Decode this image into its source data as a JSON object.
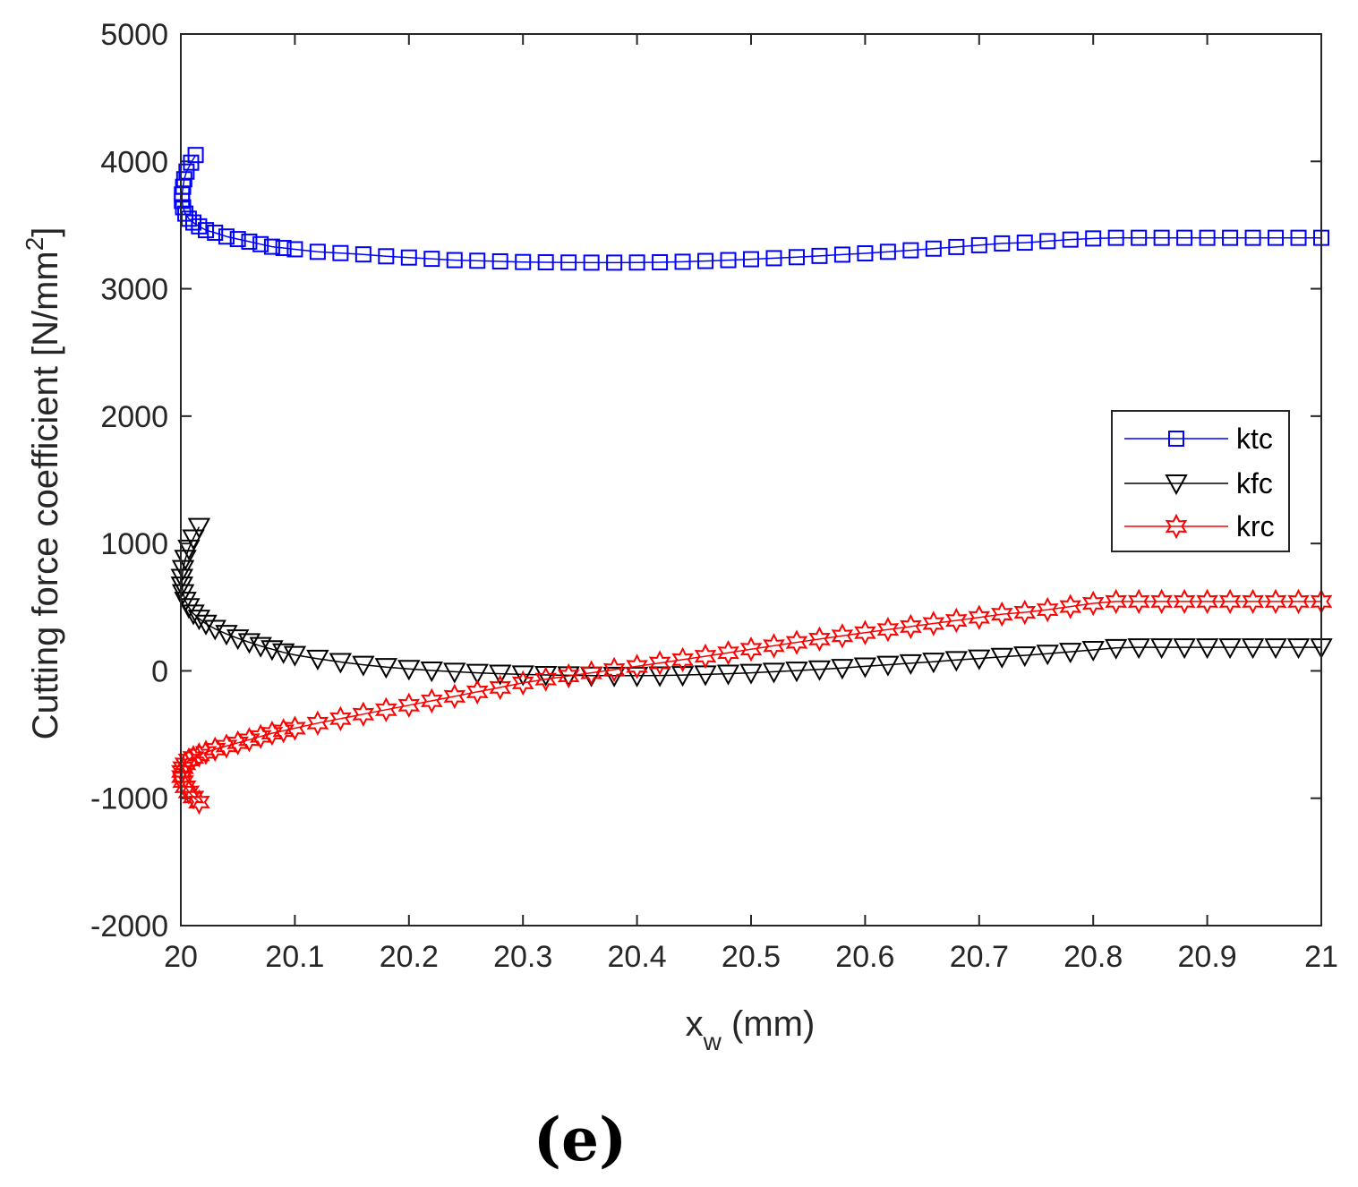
{
  "chart_data": {
    "type": "line",
    "panel_label": "(e)",
    "xlabel": {
      "main": "x",
      "sub": "w",
      "rest": " (mm)"
    },
    "ylabel": {
      "main": "Cutting force coefficient [N/mm",
      "sup": "2",
      "close": "]"
    },
    "xlim": [
      20,
      21
    ],
    "ylim": [
      -2000,
      5000
    ],
    "xticks": [
      20,
      20.1,
      20.2,
      20.3,
      20.4,
      20.5,
      20.6,
      20.7,
      20.8,
      20.9,
      21
    ],
    "xtick_labels": [
      "20",
      "20.1",
      "20.2",
      "20.3",
      "20.4",
      "20.5",
      "20.6",
      "20.7",
      "20.8",
      "20.9",
      "21"
    ],
    "yticks": [
      -2000,
      -1000,
      0,
      1000,
      2000,
      3000,
      4000,
      5000
    ],
    "ytick_labels": [
      "-2000",
      "-1000",
      "0",
      "1000",
      "2000",
      "3000",
      "4000",
      "5000"
    ],
    "legend_position": "right",
    "series": [
      {
        "name": "ktc",
        "color": "#0000ff",
        "marker": "square",
        "x": [
          20.013,
          20.009,
          20.005,
          20.003,
          20.002,
          20.001,
          20.001,
          20.002,
          20.004,
          20.007,
          20.011,
          20.016,
          20.022,
          20.03,
          20.04,
          20.05,
          20.06,
          20.07,
          20.08,
          20.09,
          20.1,
          20.12,
          20.14,
          20.16,
          20.18,
          20.2,
          20.22,
          20.24,
          20.26,
          20.28,
          20.3,
          20.32,
          20.34,
          20.36,
          20.38,
          20.4,
          20.42,
          20.44,
          20.46,
          20.48,
          20.5,
          20.52,
          20.54,
          20.56,
          20.58,
          20.6,
          20.62,
          20.64,
          20.66,
          20.68,
          20.7,
          20.72,
          20.74,
          20.76,
          20.78,
          20.8,
          20.82,
          20.84,
          20.86,
          20.88,
          20.9,
          20.92,
          20.94,
          20.96,
          20.98,
          21.0
        ],
        "values": [
          4050,
          3990,
          3920,
          3860,
          3800,
          3740,
          3690,
          3640,
          3590,
          3550,
          3520,
          3490,
          3460,
          3440,
          3410,
          3390,
          3370,
          3350,
          3330,
          3320,
          3310,
          3290,
          3280,
          3270,
          3255,
          3245,
          3235,
          3225,
          3220,
          3215,
          3210,
          3208,
          3206,
          3205,
          3205,
          3206,
          3208,
          3212,
          3218,
          3225,
          3232,
          3240,
          3248,
          3258,
          3268,
          3278,
          3290,
          3302,
          3315,
          3328,
          3342,
          3356,
          3362,
          3374,
          3386,
          3395,
          3400,
          3400,
          3400,
          3400,
          3400,
          3400,
          3400,
          3400,
          3400,
          3400
        ]
      },
      {
        "name": "kfc",
        "color": "#000000",
        "marker": "triangle-down",
        "x": [
          20.016,
          20.011,
          20.007,
          20.004,
          20.002,
          20.001,
          20.001,
          20.002,
          20.004,
          20.007,
          20.011,
          20.016,
          20.022,
          20.03,
          20.04,
          20.05,
          20.06,
          20.07,
          20.08,
          20.09,
          20.1,
          20.12,
          20.14,
          20.16,
          20.18,
          20.2,
          20.22,
          20.24,
          20.26,
          20.28,
          20.3,
          20.32,
          20.34,
          20.36,
          20.38,
          20.4,
          20.42,
          20.44,
          20.46,
          20.48,
          20.5,
          20.52,
          20.54,
          20.56,
          20.58,
          20.6,
          20.62,
          20.64,
          20.66,
          20.68,
          20.7,
          20.72,
          20.74,
          20.76,
          20.78,
          20.8,
          20.82,
          20.84,
          20.86,
          20.88,
          20.9,
          20.92,
          20.94,
          20.96,
          20.98,
          21.0
        ],
        "values": [
          1130,
          1040,
          960,
          880,
          800,
          730,
          670,
          610,
          550,
          500,
          450,
          410,
          370,
          330,
          290,
          255,
          225,
          195,
          170,
          145,
          125,
          95,
          70,
          48,
          30,
          15,
          3,
          -7,
          -15,
          -22,
          -28,
          -32,
          -35,
          -37,
          -38,
          -38,
          -36,
          -33,
          -28,
          -22,
          -15,
          -7,
          2,
          12,
          23,
          35,
          48,
          60,
          72,
          85,
          97,
          110,
          122,
          135,
          150,
          165,
          180,
          185,
          185,
          185,
          185,
          185,
          185,
          185,
          185,
          185
        ]
      },
      {
        "name": "krc",
        "color": "#ff0000",
        "marker": "hexagram",
        "x": [
          20.016,
          20.011,
          20.007,
          20.004,
          20.002,
          20.001,
          20.001,
          20.002,
          20.004,
          20.007,
          20.011,
          20.016,
          20.022,
          20.03,
          20.04,
          20.05,
          20.06,
          20.07,
          20.08,
          20.09,
          20.1,
          20.12,
          20.14,
          20.16,
          20.18,
          20.2,
          20.22,
          20.24,
          20.26,
          20.28,
          20.3,
          20.32,
          20.34,
          20.36,
          20.38,
          20.4,
          20.42,
          20.44,
          20.46,
          20.48,
          20.5,
          20.52,
          20.54,
          20.56,
          20.58,
          20.6,
          20.62,
          20.64,
          20.66,
          20.68,
          20.7,
          20.72,
          20.74,
          20.76,
          20.78,
          20.8,
          20.82,
          20.84,
          20.86,
          20.88,
          20.9,
          20.92,
          20.94,
          20.96,
          20.98,
          21.0
        ],
        "values": [
          -1030,
          -990,
          -950,
          -910,
          -870,
          -830,
          -790,
          -760,
          -730,
          -700,
          -680,
          -660,
          -640,
          -615,
          -590,
          -565,
          -540,
          -515,
          -490,
          -470,
          -450,
          -410,
          -375,
          -340,
          -305,
          -270,
          -235,
          -200,
          -165,
          -130,
          -95,
          -65,
          -40,
          -15,
          10,
          35,
          62,
          88,
          115,
          142,
          170,
          197,
          224,
          250,
          275,
          300,
          325,
          348,
          372,
          396,
          420,
          445,
          460,
          480,
          505,
          530,
          545,
          545,
          545,
          545,
          545,
          545,
          545,
          545,
          545,
          545
        ]
      }
    ]
  }
}
